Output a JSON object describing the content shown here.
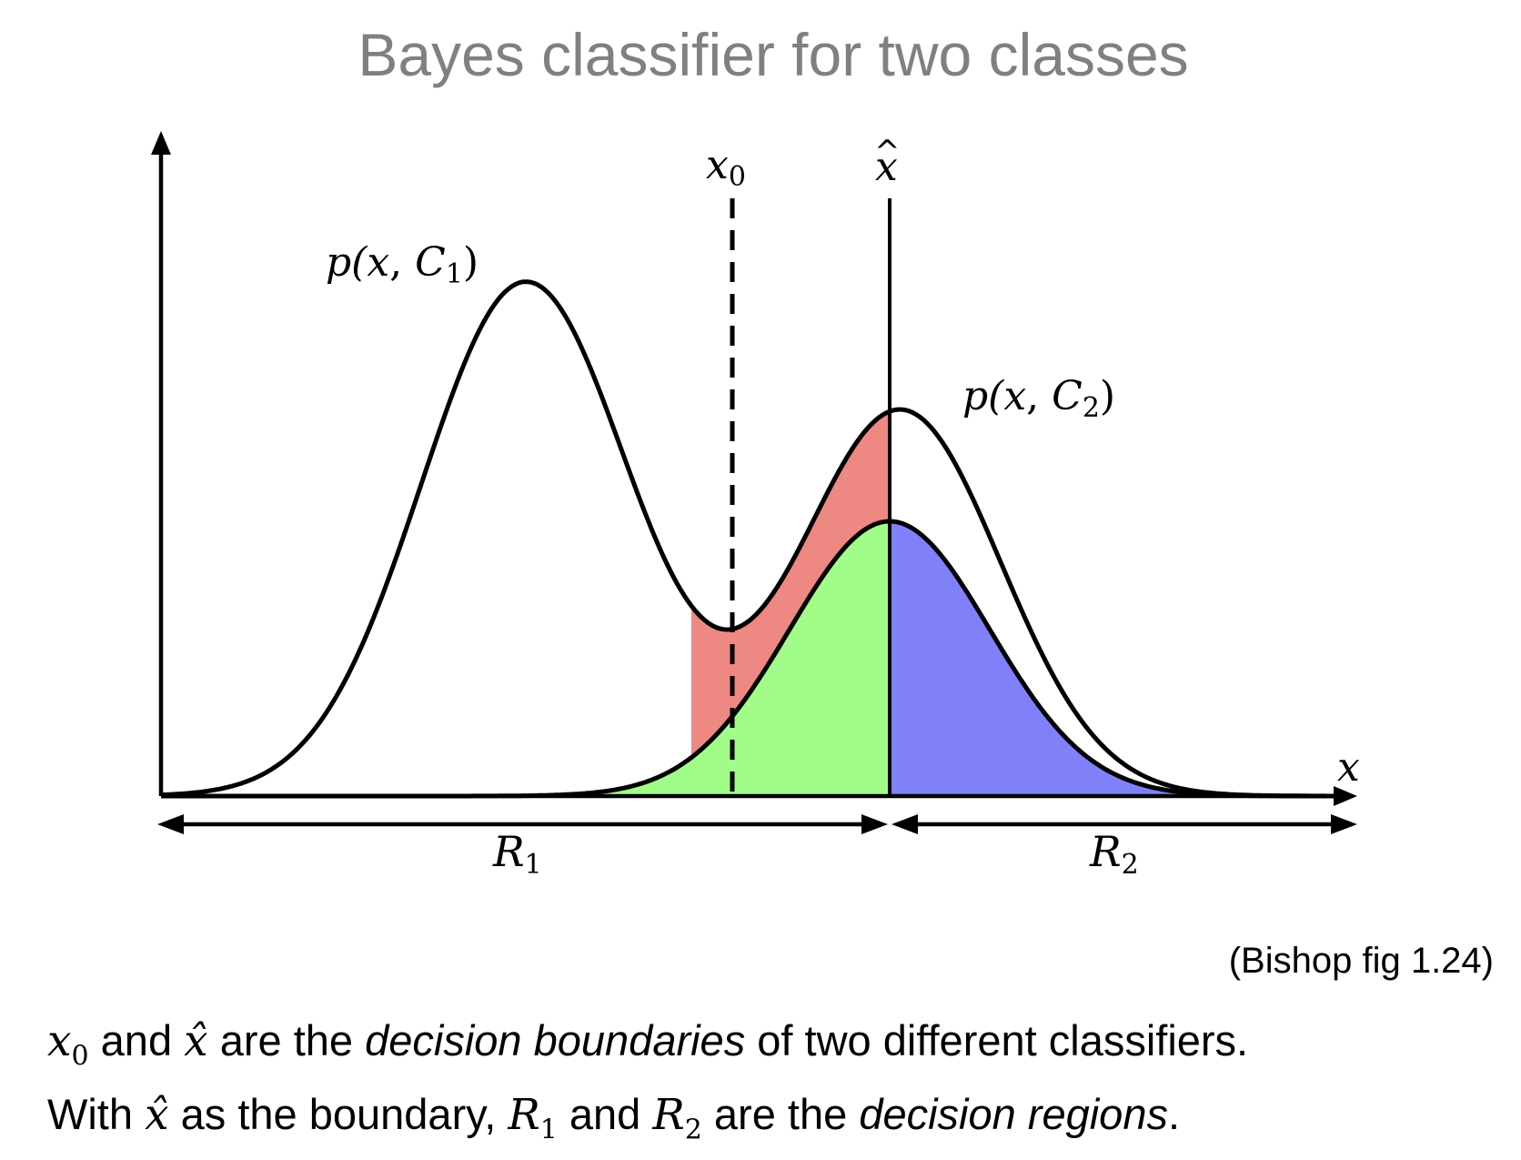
{
  "title": "Bayes classifier for two classes",
  "figure": {
    "curve1_label": {
      "p": "p(",
      "x": "x",
      "comma": ", ",
      "C": "C",
      "sub": "1",
      "close": ")"
    },
    "curve2_label": {
      "p": "p(",
      "x": "x",
      "comma": ", ",
      "C": "C",
      "sub": "2",
      "close": ")"
    },
    "x0_label": {
      "x": "x",
      "sub": "0"
    },
    "xhat_label": {
      "x": "x",
      "hat": "^"
    },
    "x_axis_label": "x",
    "region1_label": {
      "R": "R",
      "sub": "1"
    },
    "region2_label": {
      "R": "R",
      "sub": "2"
    },
    "colors": {
      "red_region": "#ee8883",
      "green_region": "#a2fc8a",
      "blue_region": "#8080f8",
      "curves": "#000000"
    }
  },
  "citation": "(Bishop fig 1.24)",
  "caption": {
    "line1": {
      "x0": "x",
      "x0_sub": "0",
      "and": " and ",
      "xhat": "x̂",
      "mid": " are the ",
      "em": "decision boundaries",
      "end": " of two different classifiers."
    },
    "line2": {
      "start": "With ",
      "xhat": "x̂",
      "mid1": " as the boundary, ",
      "r1": "R",
      "r1_sub": "1",
      "and": " and ",
      "r2": "R",
      "r2_sub": "2",
      "mid2": " are the ",
      "em": "decision regions",
      "end": "."
    }
  }
}
